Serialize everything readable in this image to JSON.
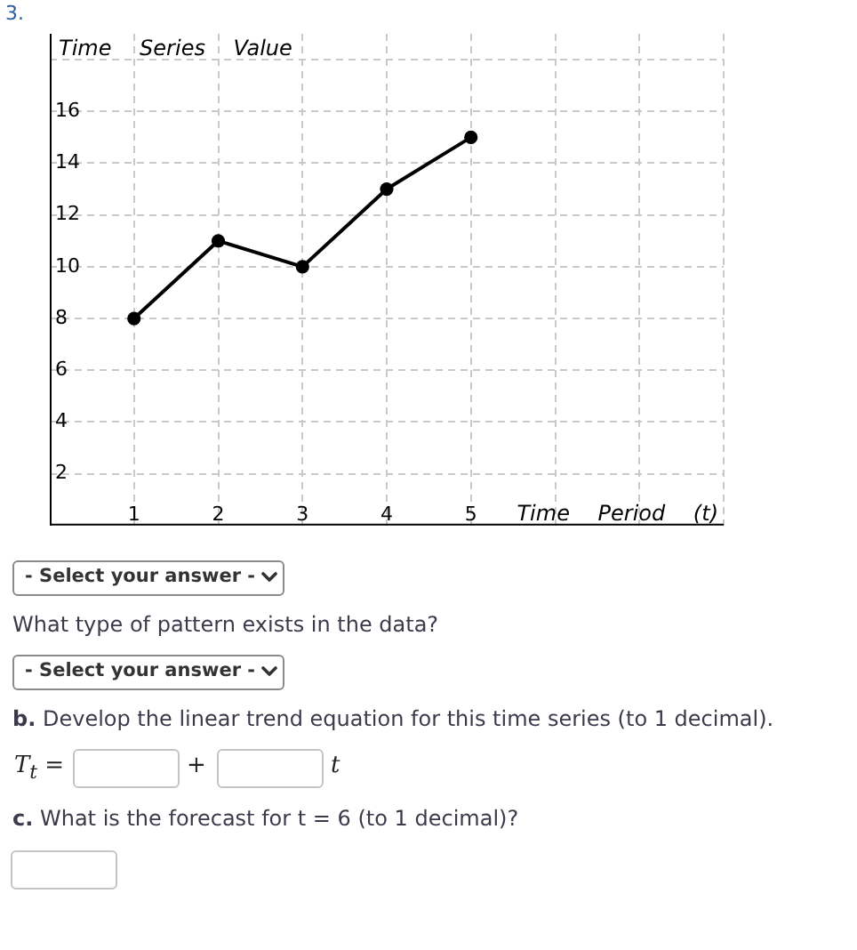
{
  "chart_data": {
    "type": "line",
    "xlabel": "Time Period (t)",
    "ylabel": "Time Series Value",
    "annotations": [
      "3.",
      "- Select your answer -",
      "What type of pattern exists in the data?",
      "- Select your answer -",
      "b. Develop the linear trend equation for this time series (to 1 decimal).",
      "T$_{t}$ =",
      "+",
      "t",
      "c. What is the forecast for t = 6 (to 1 decimal)?"
    ],
    "x": [
      1,
      2,
      3,
      4,
      5
    ],
    "series": [
      {
        "color": "#000000",
        "values": [
          8,
          11,
          10,
          13,
          15
        ]
      }
    ],
    "xlim": [
      0,
      8
    ],
    "xticks": [
      1,
      2,
      3,
      4,
      5,
      {
        "value": 6,
        "label": null
      },
      {
        "value": 7,
        "label": null
      },
      {
        "value": 8,
        "label": null
      }
    ],
    "ylim": [
      0,
      19
    ],
    "yticks": [
      2,
      4,
      6,
      8,
      10,
      12,
      14,
      16,
      {
        "value": 18,
        "label": null
      }
    ],
    "grid": true,
    "legend": false,
    "marker": "circle",
    "line_style": "solid"
  }
}
